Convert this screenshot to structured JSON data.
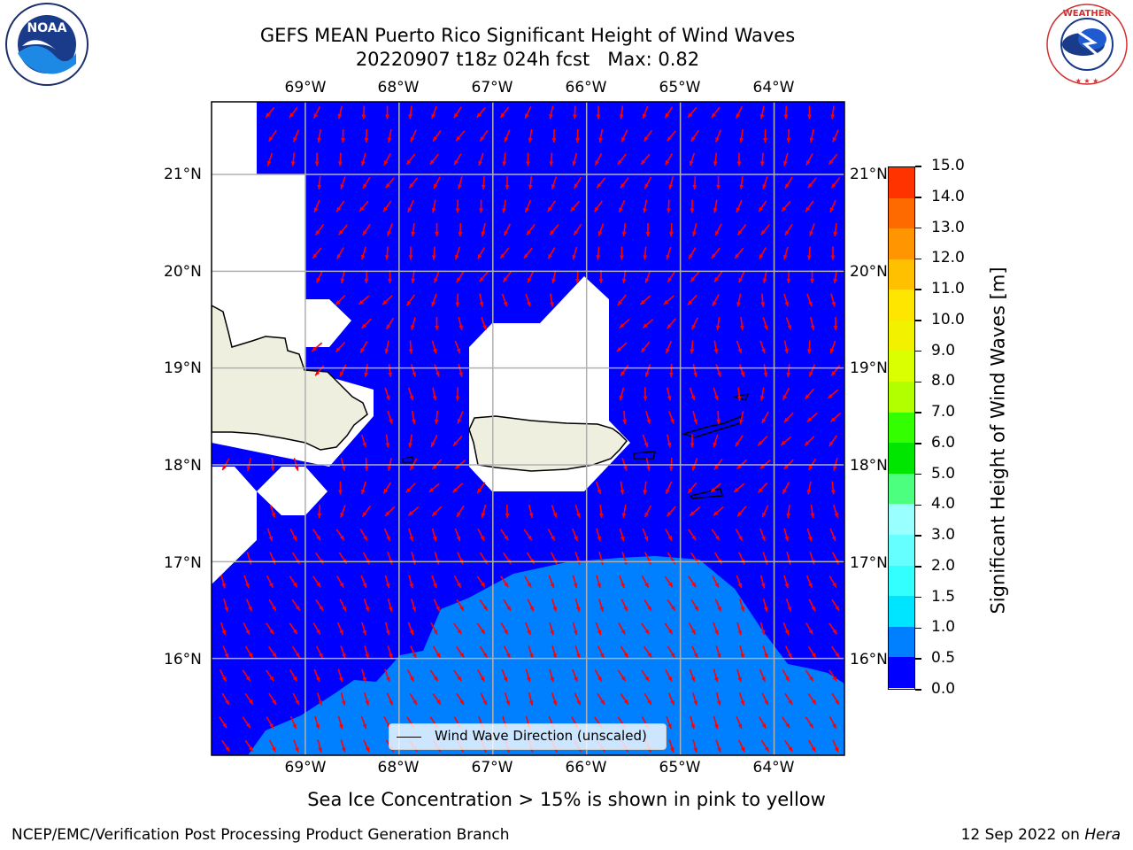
{
  "title": {
    "line1": "GEFS MEAN Puerto Rico Significant Height of Wind Waves",
    "line2": "20220907 t18z 024h fcst   Max: 0.82"
  },
  "map": {
    "lon_ticks": [
      "69°W",
      "68°W",
      "67°W",
      "66°W",
      "65°W",
      "64°W"
    ],
    "lat_ticks": [
      "21°N",
      "20°N",
      "19°N",
      "18°N",
      "17°N",
      "16°N"
    ],
    "lon_range": [
      -70.0,
      -63.25
    ],
    "lat_range": [
      15.0,
      21.75
    ],
    "background_field_color": "#0000ff",
    "higher_band_color": "#0080ff",
    "land_color": "#efefdf",
    "arrow_color": "#ff0000",
    "grid": true
  },
  "legend": {
    "label": "Wind Wave Direction (unscaled)"
  },
  "colorbar": {
    "label": "Significant Height of Wind Waves [m]",
    "ticks": [
      "0.0",
      "0.5",
      "1.0",
      "1.5",
      "2.0",
      "3.0",
      "4.0",
      "5.0",
      "6.0",
      "7.0",
      "8.0",
      "9.0",
      "10.0",
      "11.0",
      "12.0",
      "13.0",
      "14.0",
      "15.0"
    ],
    "colors": [
      "#0000ff",
      "#0080ff",
      "#00e5ff",
      "#33ffff",
      "#66ffff",
      "#99ffff",
      "#4cff7f",
      "#00e600",
      "#33ff00",
      "#b2ff00",
      "#d9ff00",
      "#f2f200",
      "#ffe600",
      "#ffc000",
      "#ff9500",
      "#ff6a00",
      "#ff3300",
      "#ff0000"
    ]
  },
  "bottom_text": "Sea Ice Concentration > 15% is shown in pink to yellow",
  "footer": {
    "left": "NCEP/EMC/Verification Post Processing Product Generation Branch",
    "right_date": "12 Sep 2022 on",
    "right_host": "Hera"
  },
  "logos": {
    "noaa": "NOAA",
    "nws": "NATIONAL WEATHER SERVICE"
  }
}
